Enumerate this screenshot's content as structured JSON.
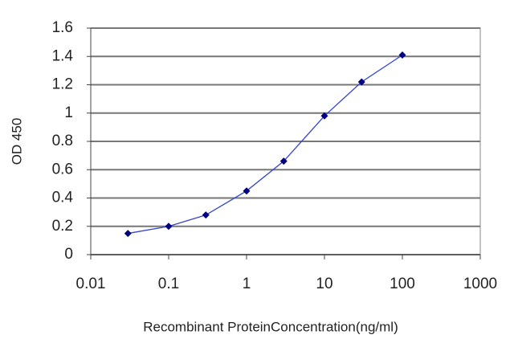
{
  "chart_data": {
    "type": "line",
    "x": [
      0.03,
      0.1,
      0.3,
      1,
      3,
      10,
      30,
      100
    ],
    "values": [
      0.15,
      0.2,
      0.28,
      0.45,
      0.66,
      0.98,
      1.22,
      1.41
    ],
    "color": "#3344cc",
    "marker_color": "#000080",
    "xscale": "log",
    "xlim": [
      0.01,
      1000
    ],
    "xticks": [
      0.01,
      0.1,
      1,
      10,
      100,
      1000
    ],
    "ylim": [
      0,
      1.6
    ],
    "yticks": [
      0,
      0.2,
      0.4,
      0.6,
      0.8,
      1,
      1.2,
      1.4,
      1.6
    ],
    "grid": true,
    "x_label": "Recombinant ProteinConcentration(ng/ml)",
    "y_label": "OD 450"
  }
}
